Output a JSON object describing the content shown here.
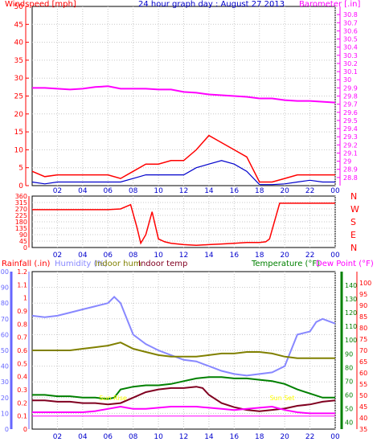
{
  "chart_data": [
    {
      "type": "line",
      "title": "24 hour graph day : August 27 2013",
      "ylabel_left": "Windspeed [mph]",
      "ylabel_right": "Barometer [.in]",
      "x_ticks": [
        "02",
        "04",
        "06",
        "08",
        "10",
        "12",
        "14",
        "16",
        "18",
        "20",
        "22",
        "00"
      ],
      "ylim_left": [
        0,
        50
      ],
      "yticks_left": [
        0,
        5,
        10,
        15,
        20,
        25,
        30,
        35,
        40,
        45,
        50
      ],
      "ylim_right": [
        28.7,
        30.9
      ],
      "yticks_right": [
        "28.8",
        "28.9",
        "29",
        "29.1",
        "29.2",
        "29.3",
        "29.4",
        "29.5",
        "29.6",
        "29.7",
        "29.8",
        "29.9",
        "30",
        "30.1",
        "30.2",
        "30.3",
        "30.4",
        "30.5",
        "30.6",
        "30.7",
        "30.8"
      ],
      "grid": true,
      "colors": {
        "gust": "#ff0000",
        "speed": "#0000cc",
        "barometer": "#ff00ff",
        "title": "#0000cc",
        "left_axis": "#ff0000",
        "right_axis": "#ff00ff"
      },
      "series": [
        {
          "key": "gust",
          "x": [
            0,
            1,
            2,
            3,
            4,
            5,
            6,
            7,
            8,
            9,
            10,
            11,
            12,
            13,
            14,
            15,
            16,
            17,
            18,
            19,
            20,
            21,
            22,
            23,
            24
          ],
          "values": [
            4,
            2.5,
            3,
            3,
            3,
            3,
            3,
            2,
            4,
            6,
            6,
            7,
            7,
            10,
            14,
            12,
            10,
            8,
            1,
            1,
            2,
            3,
            3,
            3,
            3
          ]
        },
        {
          "key": "speed",
          "x": [
            0,
            1,
            2,
            3,
            4,
            5,
            6,
            7,
            8,
            9,
            10,
            11,
            12,
            13,
            14,
            15,
            16,
            17,
            18,
            19,
            20,
            21,
            22,
            23,
            24
          ],
          "values": [
            1,
            0.5,
            1,
            1,
            1,
            1,
            1,
            1,
            2,
            3,
            3,
            3,
            3,
            5,
            6,
            7,
            6,
            4,
            0.3,
            0.3,
            0.5,
            1,
            1.5,
            1,
            1
          ]
        },
        {
          "key": "barometer",
          "x": [
            0,
            1,
            2,
            3,
            4,
            5,
            6,
            7,
            8,
            9,
            10,
            11,
            12,
            13,
            14,
            15,
            16,
            17,
            18,
            19,
            20,
            21,
            22,
            23,
            24
          ],
          "values": [
            29.9,
            29.9,
            29.89,
            29.88,
            29.89,
            29.91,
            29.92,
            29.89,
            29.89,
            29.89,
            29.88,
            29.88,
            29.85,
            29.84,
            29.82,
            29.81,
            29.8,
            29.79,
            29.77,
            29.77,
            29.75,
            29.74,
            29.74,
            29.73,
            29.72
          ]
        }
      ]
    },
    {
      "type": "line",
      "ylim": [
        0,
        360
      ],
      "yticks": [
        0,
        45,
        90,
        135,
        180,
        225,
        270,
        315,
        360
      ],
      "compass": [
        "N",
        "W",
        "S",
        "E",
        "N"
      ],
      "x_ticks": [
        "02",
        "04",
        "06",
        "08",
        "10",
        "12",
        "14",
        "16",
        "18",
        "20",
        "22",
        "00"
      ],
      "colors": {
        "direction": "#ff0000",
        "axis": "#ff0000"
      },
      "series": [
        {
          "key": "direction",
          "x": [
            0,
            1,
            2,
            3,
            4,
            5,
            6,
            7,
            7.8,
            8.3,
            8.6,
            9.0,
            9.5,
            10,
            10.5,
            11,
            12,
            13,
            14,
            15,
            16,
            17,
            18,
            18.5,
            18.8,
            19.6,
            20,
            21,
            22,
            23,
            24
          ],
          "values": [
            265,
            265,
            265,
            265,
            265,
            265,
            265,
            270,
            300,
            140,
            30,
            90,
            250,
            60,
            40,
            30,
            20,
            15,
            20,
            25,
            30,
            35,
            35,
            40,
            60,
            310,
            310,
            310,
            310,
            310,
            310
          ]
        }
      ]
    },
    {
      "type": "line",
      "legend": [
        "Rainfall (.in)",
        "Humidity (%)",
        "Indoor hum",
        "Indoor temp",
        "Temperature (°F)",
        "Dew Point (°F)"
      ],
      "x_ticks": [
        "02",
        "04",
        "06",
        "08",
        "10",
        "12",
        "14",
        "16",
        "18",
        "20",
        "22",
        "00"
      ],
      "ylim_rain": [
        0,
        1.2
      ],
      "yticks_rain": [
        "0",
        "0.1",
        "0.2",
        "0.3",
        "0.4",
        "0.5",
        "0.6",
        "0.7",
        "0.8",
        "0.9",
        "1",
        "1.1",
        "1.2"
      ],
      "ylim_hum": [
        0,
        100
      ],
      "yticks_hum": [
        0,
        10,
        20,
        30,
        40,
        50,
        60,
        70,
        80,
        90,
        100
      ],
      "ylim_temp": [
        35,
        150
      ],
      "yticks_temp": [
        40,
        50,
        60,
        70,
        80,
        90,
        100,
        110,
        120,
        130,
        140
      ],
      "ylim_dew": [
        35,
        105
      ],
      "yticks_dew": [
        35,
        40,
        45,
        50,
        55,
        60,
        65,
        70,
        75,
        80,
        85,
        90,
        95,
        100
      ],
      "annotations": [
        "Sun Rise",
        "Sun Set"
      ],
      "colors": {
        "rain": "#ff00ff",
        "humidity": "#8888ff",
        "indoor_hum": "#808000",
        "indoor_temp": "#800020",
        "temperature": "#008000",
        "dewpoint": "#ff00ff",
        "rain_axis": "#6666ff",
        "temp_axis": "#008000",
        "dew_axis": "#ff0000",
        "annotation": "#ffff00"
      },
      "series": [
        {
          "key": "rain",
          "x": [
            0,
            24
          ],
          "values": [
            0.1,
            0.1
          ]
        },
        {
          "key": "humidity",
          "x": [
            0,
            1,
            2,
            3,
            4,
            5,
            6,
            6.5,
            7,
            7.5,
            8,
            9,
            10,
            11,
            12,
            13,
            14,
            15,
            16,
            17,
            18,
            19,
            20,
            21,
            22,
            22.5,
            23,
            24
          ],
          "values": [
            72,
            71,
            72,
            74,
            76,
            78,
            80,
            84,
            80,
            70,
            60,
            54,
            50,
            47,
            44,
            43,
            40,
            37,
            35,
            34,
            35,
            36,
            40,
            60,
            62,
            68,
            70,
            67
          ]
        },
        {
          "key": "indoor_hum",
          "x": [
            0,
            1,
            2,
            3,
            4,
            5,
            6,
            7,
            8,
            9,
            10,
            11,
            12,
            13,
            14,
            15,
            16,
            17,
            18,
            19,
            20,
            21,
            22,
            23,
            24
          ],
          "values": [
            50,
            50,
            50,
            50,
            51,
            52,
            53,
            55,
            51,
            49,
            47,
            46,
            46,
            46,
            47,
            48,
            48,
            49,
            49,
            48,
            46,
            45,
            45,
            45,
            45
          ]
        },
        {
          "key": "indoor_temp",
          "x": [
            0,
            1,
            2,
            3,
            4,
            5,
            6,
            7,
            8,
            9,
            10,
            11,
            12,
            13,
            13.5,
            14,
            15,
            16,
            17,
            18,
            19,
            20,
            21,
            22,
            23,
            24
          ],
          "values": [
            56,
            56,
            55,
            55,
            54,
            54,
            53,
            54,
            58,
            62,
            64,
            65,
            65,
            66,
            65,
            60,
            54,
            51,
            49,
            48,
            49,
            50,
            52,
            53,
            55,
            56
          ]
        },
        {
          "key": "temperature",
          "x": [
            0,
            1,
            2,
            3,
            4,
            5,
            6,
            6.5,
            7,
            8,
            9,
            10,
            11,
            12,
            13,
            14,
            15,
            16,
            17,
            18,
            19,
            20,
            21,
            22,
            23,
            24
          ],
          "values": [
            60,
            60,
            59,
            59,
            58,
            58,
            57,
            58,
            64,
            66,
            67,
            67,
            68,
            70,
            72,
            73,
            73,
            72,
            72,
            71,
            70,
            68,
            64,
            61,
            58,
            58
          ]
        },
        {
          "key": "dewpoint",
          "x": [
            0,
            1,
            2,
            3,
            4,
            5,
            6,
            7,
            8,
            9,
            10,
            11,
            12,
            13,
            14,
            15,
            16,
            17,
            18,
            19,
            20,
            21,
            22,
            23,
            24
          ],
          "values": [
            42.5,
            42.5,
            42.5,
            42.5,
            42.5,
            43,
            44,
            45,
            44,
            44,
            44.5,
            45,
            45,
            45,
            44.5,
            44,
            43.5,
            44,
            44.5,
            45,
            43.5,
            42.5,
            42,
            42,
            42
          ]
        }
      ]
    }
  ]
}
